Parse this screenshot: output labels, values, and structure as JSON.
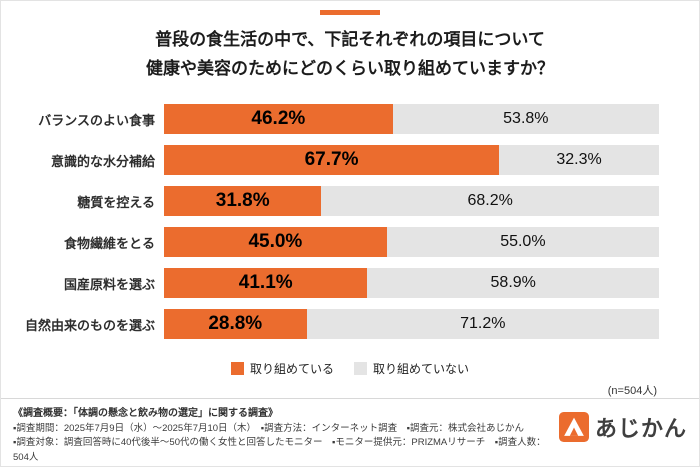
{
  "colors": {
    "accent_orange": "#EB6C2E",
    "bar_gray": "#E4E4E4"
  },
  "title": {
    "line1": "普段の食生活の中で、下記それぞれの項目について",
    "line2": "健康や美容のためにどのくらい取り組めていますか？"
  },
  "chart_data": {
    "type": "bar",
    "orientation": "horizontal-stacked",
    "categories": [
      "バランスのよい食事",
      "意識的な水分補給",
      "糖質を控える",
      "食物繊維をとる",
      "国産原料を選ぶ",
      "自然由来のものを選ぶ"
    ],
    "series": [
      {
        "name": "取り組めている",
        "color": "#EB6C2E",
        "values": [
          46.2,
          67.7,
          31.8,
          45.0,
          41.1,
          28.8
        ]
      },
      {
        "name": "取り組めていない",
        "color": "#E4E4E4",
        "values": [
          53.8,
          32.3,
          68.2,
          55.0,
          58.9,
          71.2
        ]
      }
    ],
    "value_labels": [
      [
        "46.2%",
        "53.8%"
      ],
      [
        "67.7%",
        "32.3%"
      ],
      [
        "31.8%",
        "68.2%"
      ],
      [
        "45.0%",
        "55.0%"
      ],
      [
        "41.1%",
        "58.9%"
      ],
      [
        "28.8%",
        "71.2%"
      ]
    ],
    "xlim": [
      0,
      100
    ],
    "legend_position": "bottom",
    "grid": false
  },
  "legend": {
    "items": [
      {
        "label": "取り組めている"
      },
      {
        "label": "取り組めていない"
      }
    ]
  },
  "sample_note": "(n=504人)",
  "footer": {
    "heading": "《調査概要：「体調の懸念と飲み物の選定」に関する調査》",
    "line1": "▪調査期間：2025年7月9日（水）～2025年7月10日（木）　▪調査方法：インターネット調査　▪調査元：株式会社あじかん",
    "line2": "▪調査対象：調査回答時に40代後半～50代の働く女性と回答したモニター　▪モニター提供元：PRIZMAリサーチ　▪調査人数：504人"
  },
  "logo": {
    "text": "あじかん"
  }
}
